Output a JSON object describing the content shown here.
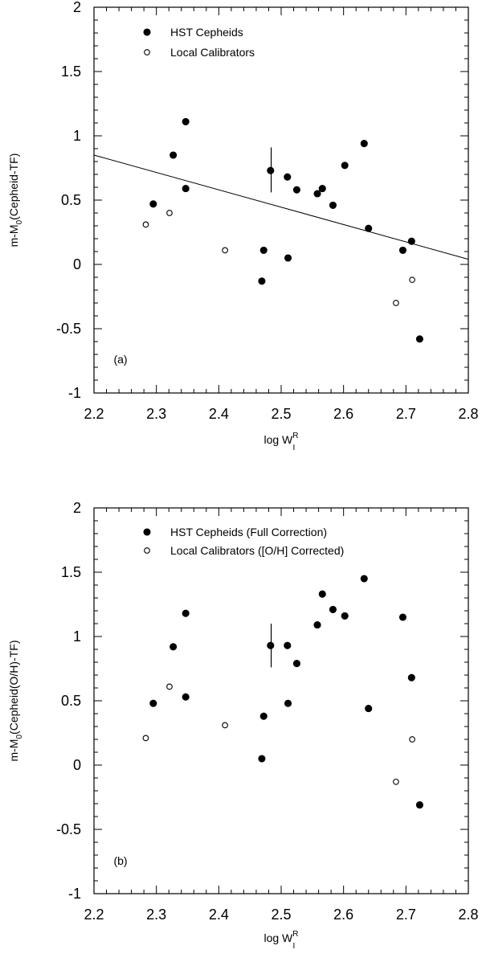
{
  "chart_data": [
    {
      "type": "scatter",
      "panel_label": "(a)",
      "xlabel": {
        "base": "log W",
        "sup": "R",
        "sub": "I"
      },
      "ylabel": {
        "pre": "m-M",
        "sub": "0",
        "post": "(Cepheid-TF)"
      },
      "xlim": [
        2.2,
        2.8
      ],
      "ylim": [
        -1,
        2
      ],
      "x_ticks": [
        "2.2",
        "2.3",
        "2.4",
        "2.5",
        "2.6",
        "2.7",
        "2.8"
      ],
      "y_ticks": [
        "-1",
        "-0.5",
        "0",
        "0.5",
        "1",
        "1.5",
        "2"
      ],
      "legend_position": "top-left",
      "series": [
        {
          "name": "HST Cepheids",
          "marker": "filled-circle",
          "points": [
            [
              2.295,
              0.47
            ],
            [
              2.327,
              0.85
            ],
            [
              2.347,
              1.11
            ],
            [
              2.347,
              0.59
            ],
            [
              2.469,
              -0.13
            ],
            [
              2.472,
              0.11
            ],
            [
              2.483,
              0.73
            ],
            [
              2.51,
              0.68
            ],
            [
              2.511,
              0.05
            ],
            [
              2.525,
              0.58
            ],
            [
              2.558,
              0.55
            ],
            [
              2.566,
              0.59
            ],
            [
              2.583,
              0.46
            ],
            [
              2.602,
              0.77
            ],
            [
              2.633,
              0.94
            ],
            [
              2.64,
              0.28
            ],
            [
              2.695,
              0.11
            ],
            [
              2.709,
              0.18
            ],
            [
              2.722,
              -0.58
            ]
          ]
        },
        {
          "name": "Local Calibrators",
          "marker": "open-circle",
          "points": [
            [
              2.283,
              0.31
            ],
            [
              2.321,
              0.4
            ],
            [
              2.41,
              0.11
            ],
            [
              2.684,
              -0.3
            ],
            [
              2.71,
              -0.12
            ]
          ]
        }
      ],
      "fit_line": {
        "x": [
          2.2,
          2.8
        ],
        "y": [
          0.85,
          0.04
        ]
      },
      "error_bar": {
        "x": 2.484,
        "y_low": 0.56,
        "y_high": 0.91
      }
    },
    {
      "type": "scatter",
      "panel_label": "(b)",
      "xlabel": {
        "base": "log W",
        "sup": "R",
        "sub": "I"
      },
      "ylabel": {
        "pre": "m-M",
        "sub": "0",
        "post": "(Cepheid(O/H)-TF)"
      },
      "xlim": [
        2.2,
        2.8
      ],
      "ylim": [
        -1,
        2
      ],
      "x_ticks": [
        "2.2",
        "2.3",
        "2.4",
        "2.5",
        "2.6",
        "2.7",
        "2.8"
      ],
      "y_ticks": [
        "-1",
        "-0.5",
        "0",
        "0.5",
        "1",
        "1.5",
        "2"
      ],
      "legend_position": "top-left",
      "series": [
        {
          "name": "HST Cepheids (Full Correction)",
          "marker": "filled-circle",
          "points": [
            [
              2.295,
              0.48
            ],
            [
              2.327,
              0.92
            ],
            [
              2.347,
              1.18
            ],
            [
              2.347,
              0.53
            ],
            [
              2.469,
              0.05
            ],
            [
              2.472,
              0.38
            ],
            [
              2.483,
              0.93
            ],
            [
              2.51,
              0.93
            ],
            [
              2.511,
              0.48
            ],
            [
              2.525,
              0.79
            ],
            [
              2.558,
              1.09
            ],
            [
              2.566,
              1.33
            ],
            [
              2.583,
              1.21
            ],
            [
              2.602,
              1.16
            ],
            [
              2.633,
              1.45
            ],
            [
              2.64,
              0.44
            ],
            [
              2.695,
              1.15
            ],
            [
              2.709,
              0.68
            ],
            [
              2.722,
              -0.31
            ]
          ]
        },
        {
          "name": "Local Calibrators ([O/H] Corrected)",
          "marker": "open-circle",
          "points": [
            [
              2.283,
              0.21
            ],
            [
              2.321,
              0.61
            ],
            [
              2.41,
              0.31
            ],
            [
              2.684,
              -0.13
            ],
            [
              2.71,
              0.2
            ]
          ]
        }
      ],
      "error_bar": {
        "x": 2.484,
        "y_low": 0.76,
        "y_high": 1.1
      }
    }
  ]
}
